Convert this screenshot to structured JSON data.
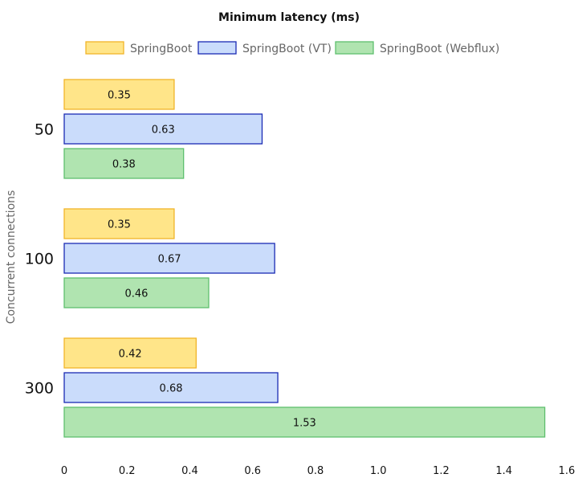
{
  "chart_data": {
    "type": "bar",
    "orientation": "horizontal",
    "title": "Minimum latency (ms)",
    "ylabel": "Concurrent connections",
    "xlabel": "",
    "categories": [
      "50",
      "100",
      "300"
    ],
    "series": [
      {
        "name": "SpringBoot",
        "values": [
          0.35,
          0.35,
          0.42
        ],
        "color": "#ffe589",
        "border": "#f0b429"
      },
      {
        "name": "SpringBoot (VT)",
        "values": [
          0.63,
          0.67,
          0.68
        ],
        "color": "#cadcfb",
        "border": "#1a2bb4"
      },
      {
        "name": "SpringBoot (Webflux)",
        "values": [
          0.38,
          0.46,
          1.53
        ],
        "color": "#b0e4b0",
        "border": "#5fbf6e"
      }
    ],
    "xlim": [
      0,
      1.6
    ],
    "xticks": [
      "0",
      "0.2",
      "0.4",
      "0.6",
      "0.8",
      "1.0",
      "1.2",
      "1.4",
      "1.6"
    ],
    "grid": false,
    "legend": "top-center"
  }
}
